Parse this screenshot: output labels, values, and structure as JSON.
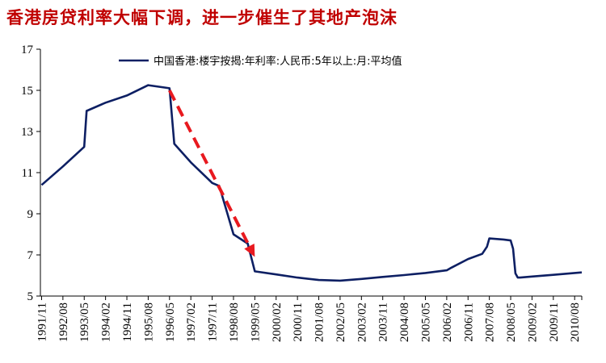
{
  "page": {
    "title": "香港房贷利率大幅下调，进一步催生了其地产泡沫"
  },
  "chart_data": {
    "type": "line",
    "title": "香港房贷利率大幅下调，进一步催生了其地产泡沫",
    "xlabel": "",
    "ylabel": "",
    "ylim": [
      5,
      17
    ],
    "yticks": [
      "5",
      "7",
      "9",
      "11",
      "13",
      "15",
      "17"
    ],
    "xticks": [
      "1991/11",
      "1992/08",
      "1993/05",
      "1994/02",
      "1994/11",
      "1995/08",
      "1996/05",
      "1997/02",
      "1997/11",
      "1998/08",
      "1999/05",
      "2000/02",
      "2000/11",
      "2001/08",
      "2002/05",
      "2003/02",
      "2003/11",
      "2004/08",
      "2005/05",
      "2006/02",
      "2006/11",
      "2007/08",
      "2008/05",
      "2009/02",
      "2009/11",
      "2010/08"
    ],
    "legend": "top-center",
    "grid": false,
    "series": [
      {
        "name": "中国香港:楼宇按揭:年利率:人民币:5年以上:月:平均值",
        "color": "#0d1f63",
        "x": [
          "1991/11",
          "1992/08",
          "1993/05",
          "1993/06",
          "1994/02",
          "1994/11",
          "1995/08",
          "1996/05",
          "1996/07",
          "1997/02",
          "1997/11",
          "1998/02",
          "1998/08",
          "1999/02",
          "1999/05",
          "2000/02",
          "2000/11",
          "2001/08",
          "2002/05",
          "2003/02",
          "2003/11",
          "2004/08",
          "2005/05",
          "2006/02",
          "2006/04",
          "2006/11",
          "2007/05",
          "2007/07",
          "2007/08",
          "2008/02",
          "2008/05",
          "2008/06",
          "2008/07",
          "2008/08",
          "2008/09",
          "2009/02",
          "2009/11",
          "2010/08",
          "2010/11"
        ],
        "values": [
          10.4,
          11.3,
          12.25,
          14.0,
          14.4,
          14.75,
          15.25,
          15.1,
          12.4,
          11.5,
          10.5,
          10.35,
          8.0,
          7.55,
          6.2,
          6.05,
          5.9,
          5.78,
          5.75,
          5.83,
          5.93,
          6.02,
          6.12,
          6.25,
          6.38,
          6.8,
          7.05,
          7.4,
          7.8,
          7.75,
          7.7,
          7.3,
          6.1,
          5.9,
          5.9,
          5.95,
          6.03,
          6.12,
          6.15
        ]
      }
    ],
    "annotations": [
      {
        "type": "dashed-arrow",
        "color": "#e8191f",
        "from": {
          "x": "1996/05",
          "y": 15.0
        },
        "to": {
          "x": "1999/05",
          "y": 6.9
        }
      }
    ]
  }
}
